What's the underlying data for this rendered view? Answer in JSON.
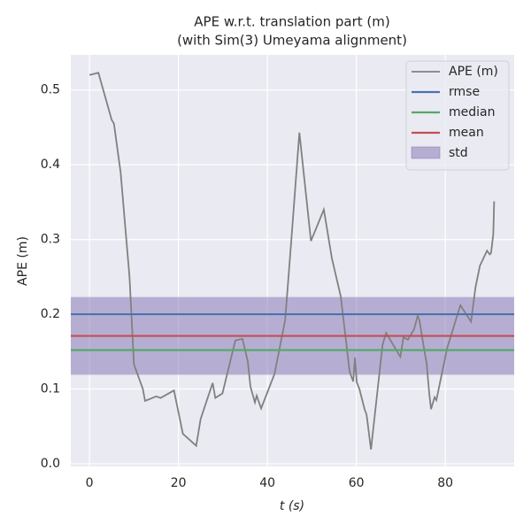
{
  "chart_data": {
    "type": "line",
    "title": "APE w.r.t. translation part (m)",
    "subtitle": "(with Sim(3) Umeyama alignment)",
    "xlabel": "t (s)",
    "ylabel": "APE (m)",
    "xlim": [
      -4.2,
      95.5
    ],
    "ylim": [
      -0.0036,
      0.547
    ],
    "xticks": [
      0,
      20,
      40,
      60,
      80
    ],
    "yticks": [
      {
        "value": 0,
        "label": "0.0"
      },
      0.1,
      0.2,
      0.3,
      0.4,
      0.5
    ],
    "grid": true,
    "legend": "upper right",
    "series": [
      {
        "name": "APE (m)",
        "color": "#808080",
        "x": [
          0,
          2,
          5,
          5.5,
          7,
          9,
          10,
          12,
          12.5,
          15,
          16,
          19,
          21,
          24,
          25,
          27.7,
          28.3,
          29.9,
          32.8,
          34.4,
          35.6,
          36.2,
          37.2,
          37.6,
          38.6,
          41.6,
          44,
          45.4,
          47.2,
          49.8,
          52.7,
          54.5,
          56.5,
          58.5,
          59.3,
          59.7,
          60.1,
          60.7,
          61.9,
          62.3,
          63.3,
          65.9,
          66.7,
          69.9,
          70.6,
          71.6,
          73,
          73.8,
          74.2,
          75.2,
          75.8,
          76.4,
          76.8,
          77.6,
          78,
          80.4,
          83.4,
          85.8,
          86.8,
          87.8,
          89.4,
          90,
          90.3,
          90.8,
          91
        ],
        "values": [
          0.52,
          0.523,
          0.46,
          0.455,
          0.39,
          0.25,
          0.133,
          0.1,
          0.084,
          0.09,
          0.088,
          0.098,
          0.04,
          0.024,
          0.06,
          0.108,
          0.088,
          0.094,
          0.165,
          0.167,
          0.137,
          0.103,
          0.082,
          0.091,
          0.074,
          0.12,
          0.192,
          0.3,
          0.443,
          0.298,
          0.34,
          0.275,
          0.224,
          0.123,
          0.11,
          0.142,
          0.109,
          0.1,
          0.072,
          0.066,
          0.019,
          0.159,
          0.175,
          0.143,
          0.169,
          0.166,
          0.18,
          0.198,
          0.192,
          0.155,
          0.135,
          0.094,
          0.073,
          0.089,
          0.085,
          0.154,
          0.212,
          0.19,
          0.236,
          0.265,
          0.285,
          0.28,
          0.282,
          0.307,
          0.351
        ]
      }
    ],
    "hlines": [
      {
        "name": "rmse",
        "value": 0.2,
        "color": "#4c72b0"
      },
      {
        "name": "median",
        "value": 0.152,
        "color": "#55a868"
      },
      {
        "name": "mean",
        "value": 0.171,
        "color": "#c44e52"
      }
    ],
    "band": {
      "name": "std",
      "value": 0.052,
      "color": "#8172b2"
    }
  }
}
